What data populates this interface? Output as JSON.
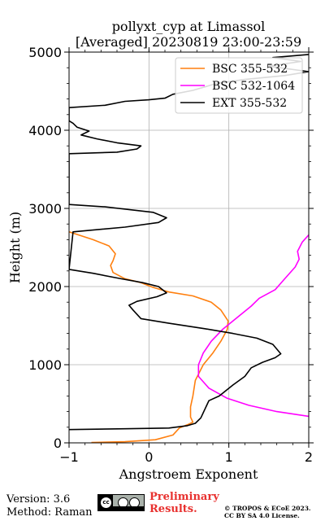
{
  "chart_data": {
    "type": "line",
    "title": "pollyxt_cyp at Limassol",
    "subtitle": "[Averaged] 20230819 23:00-23:59",
    "xlabel": "Angstroem Exponent",
    "ylabel": "Height (m)",
    "xlim": [
      -1,
      2
    ],
    "ylim": [
      0,
      5000
    ],
    "x_ticks": [
      "−1",
      "0",
      "1",
      "2"
    ],
    "y_ticks": [
      "0",
      "1000",
      "2000",
      "3000",
      "4000",
      "5000"
    ],
    "grid": true,
    "legend_position": "top-right",
    "series": [
      {
        "name": "BSC 355-532",
        "color": "#ff7f0e",
        "points": [
          [
            -0.72,
            5
          ],
          [
            -0.3,
            15
          ],
          [
            0.08,
            40
          ],
          [
            0.3,
            100
          ],
          [
            0.38,
            190
          ],
          [
            0.5,
            240
          ],
          [
            0.55,
            265
          ],
          [
            0.52,
            330
          ],
          [
            0.52,
            460
          ],
          [
            0.55,
            600
          ],
          [
            0.58,
            800
          ],
          [
            0.68,
            1000
          ],
          [
            0.8,
            1150
          ],
          [
            0.9,
            1300
          ],
          [
            0.98,
            1450
          ],
          [
            0.99,
            1560
          ],
          [
            0.9,
            1700
          ],
          [
            0.78,
            1800
          ],
          [
            0.55,
            1880
          ],
          [
            0.25,
            1930
          ],
          [
            0.05,
            1990
          ],
          [
            -0.1,
            2050
          ],
          [
            -0.3,
            2100
          ],
          [
            -0.45,
            2180
          ],
          [
            -0.48,
            2270
          ],
          [
            -0.45,
            2330
          ],
          [
            -0.42,
            2420
          ],
          [
            -0.5,
            2520
          ],
          [
            -0.7,
            2600
          ],
          [
            -1.0,
            2700
          ]
        ]
      },
      {
        "name": "BSC 532-1064",
        "color": "#ff00ff",
        "points": [
          [
            2.0,
            340
          ],
          [
            1.6,
            400
          ],
          [
            1.25,
            480
          ],
          [
            0.98,
            570
          ],
          [
            0.75,
            700
          ],
          [
            0.62,
            850
          ],
          [
            0.62,
            1000
          ],
          [
            0.68,
            1150
          ],
          [
            0.78,
            1300
          ],
          [
            0.92,
            1450
          ],
          [
            1.1,
            1600
          ],
          [
            1.28,
            1750
          ],
          [
            1.38,
            1850
          ],
          [
            1.58,
            1960
          ],
          [
            1.7,
            2100
          ],
          [
            1.83,
            2250
          ],
          [
            1.88,
            2350
          ],
          [
            1.86,
            2450
          ],
          [
            1.92,
            2570
          ],
          [
            2.0,
            2660
          ]
        ]
      },
      {
        "name": "EXT 355-532",
        "color": "#000000",
        "points": [
          [
            -1.0,
            170
          ],
          [
            -0.3,
            180
          ],
          [
            0.25,
            190
          ],
          [
            0.48,
            220
          ],
          [
            0.58,
            250
          ],
          [
            0.65,
            320
          ],
          [
            0.75,
            540
          ],
          [
            0.88,
            600
          ],
          [
            1.05,
            740
          ],
          [
            1.2,
            850
          ],
          [
            1.28,
            960
          ],
          [
            1.42,
            1030
          ],
          [
            1.58,
            1090
          ],
          [
            1.65,
            1140
          ],
          [
            1.55,
            1260
          ],
          [
            1.35,
            1340
          ],
          [
            1.05,
            1400
          ],
          [
            0.7,
            1460
          ],
          [
            0.25,
            1530
          ],
          [
            -0.1,
            1590
          ],
          [
            -0.2,
            1700
          ],
          [
            -0.25,
            1760
          ],
          [
            -0.15,
            1810
          ],
          [
            0.1,
            1870
          ],
          [
            0.22,
            1920
          ],
          [
            0.12,
            2000
          ],
          [
            -0.08,
            2050
          ],
          [
            -0.35,
            2100
          ],
          [
            -0.7,
            2170
          ],
          [
            -1.0,
            2220
          ],
          [
            -0.95,
            2700
          ],
          [
            -0.3,
            2760
          ],
          [
            0.12,
            2820
          ],
          [
            0.22,
            2880
          ],
          [
            0.05,
            2950
          ],
          [
            -0.55,
            3020
          ],
          [
            -1.0,
            3050
          ],
          [
            -1.0,
            3700
          ],
          [
            -0.4,
            3720
          ],
          [
            -0.15,
            3760
          ],
          [
            -0.1,
            3800
          ],
          [
            -0.4,
            3840
          ],
          [
            -0.65,
            3890
          ],
          [
            -0.85,
            3940
          ],
          [
            -0.75,
            3990
          ],
          [
            -0.9,
            4040
          ],
          [
            -0.95,
            4090
          ],
          [
            -1.0,
            4120
          ],
          [
            -1.0,
            4290
          ],
          [
            -0.55,
            4320
          ],
          [
            -0.3,
            4370
          ],
          [
            0.0,
            4390
          ],
          [
            0.2,
            4410
          ],
          [
            0.3,
            4460
          ],
          [
            0.55,
            4510
          ],
          [
            0.85,
            4600
          ],
          [
            1.2,
            4650
          ],
          [
            1.7,
            4700
          ],
          [
            2.0,
            4750
          ],
          [
            1.5,
            4820
          ],
          [
            1.9,
            4880
          ],
          [
            1.55,
            4930
          ],
          [
            2.0,
            4970
          ]
        ]
      }
    ]
  },
  "footer": {
    "version": "Version: 3.6",
    "method": "Method: Raman",
    "preliminary_line1": "Preliminary",
    "preliminary_line2": "Results.",
    "copyright_line1": "© TROPOS & ECoE 2023.",
    "copyright_line2": "CC BY SA 4.0 License."
  },
  "license_badge": {
    "icon": "cc-by-sa-icon",
    "text": "cc"
  }
}
